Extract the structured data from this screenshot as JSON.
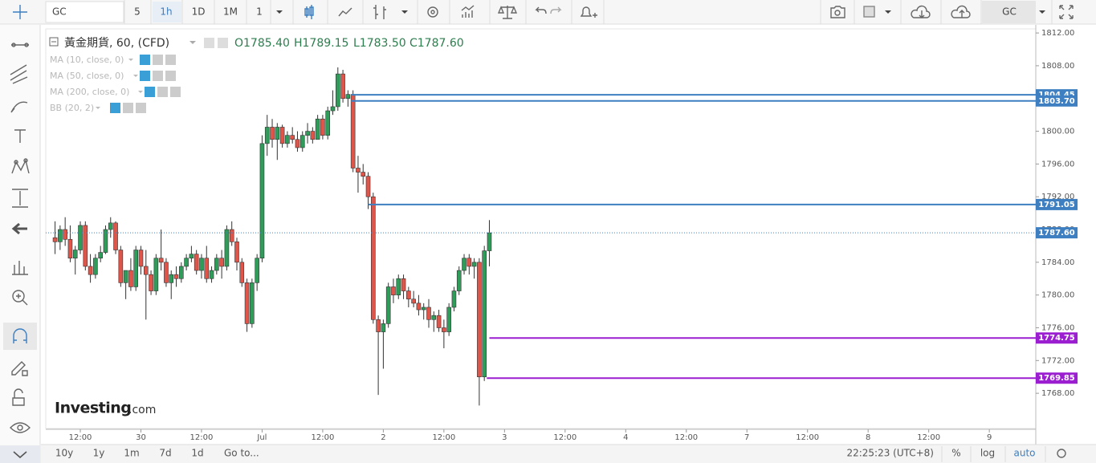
{
  "toolbar": {
    "symbol": "GC",
    "intervals": [
      "5",
      "1h",
      "1D",
      "1M"
    ],
    "chart_style": "1",
    "right_symbol": "GC"
  },
  "legend": {
    "title": "黃金期貨, 60, (CFD)",
    "ohlc": [
      "O1785.40",
      "H1789.15",
      "L1783.50",
      "C1787.60"
    ],
    "indicators": [
      "MA (10, close, 0)",
      "MA (50, close, 0)",
      "MA (200, close, 0)",
      "BB (20, 2)"
    ]
  },
  "chart_data": {
    "type": "candlestick",
    "x": [
      -5,
      -4,
      -3,
      -2,
      -1,
      0,
      1,
      2,
      3,
      4,
      5,
      6,
      7,
      8,
      9,
      10,
      11,
      12,
      13,
      14,
      15,
      16,
      17,
      18,
      19,
      20,
      21,
      22,
      23,
      24,
      25,
      26,
      27,
      28,
      29,
      30,
      31,
      32,
      33,
      34,
      35,
      36,
      37,
      38,
      39,
      40,
      41,
      42,
      43,
      44,
      45,
      46,
      47,
      48,
      49,
      50,
      51,
      52,
      53,
      54,
      55,
      56,
      57,
      58,
      59,
      60,
      61,
      62,
      63,
      64,
      65,
      66,
      67,
      68,
      69,
      70,
      71,
      72,
      73,
      74,
      75,
      76,
      77,
      78,
      79,
      80,
      81
    ],
    "ohlc": [
      [
        1787,
        1789,
        1785,
        1786.5
      ],
      [
        1786.5,
        1788.5,
        1785.5,
        1788
      ],
      [
        1788,
        1789.5,
        1786,
        1786.8
      ],
      [
        1786.8,
        1788.5,
        1784,
        1784.5
      ],
      [
        1784.5,
        1786,
        1782.5,
        1785.5
      ],
      [
        1785.5,
        1789,
        1785,
        1788.5
      ],
      [
        1788.5,
        1789,
        1783,
        1783.5
      ],
      [
        1783.5,
        1785,
        1781.5,
        1782.5
      ],
      [
        1782.5,
        1785,
        1782,
        1784.5
      ],
      [
        1784.5,
        1786,
        1784,
        1785.2
      ],
      [
        1785.2,
        1788.5,
        1785,
        1788
      ],
      [
        1788,
        1789.5,
        1787,
        1788.8
      ],
      [
        1788.8,
        1789,
        1785,
        1785.5
      ],
      [
        1785.5,
        1786,
        1781,
        1781.5
      ],
      [
        1781.5,
        1783,
        1779.5,
        1783
      ],
      [
        1783,
        1784.5,
        1780.5,
        1781
      ],
      [
        1781,
        1786,
        1780.5,
        1785.5
      ],
      [
        1785.5,
        1786,
        1782.5,
        1783.5
      ],
      [
        1783.5,
        1785.5,
        1777,
        1782.5
      ],
      [
        1782.5,
        1783,
        1780,
        1780.5
      ],
      [
        1780.5,
        1785,
        1780,
        1784.5
      ],
      [
        1784.5,
        1788,
        1783,
        1784
      ],
      [
        1784,
        1784.5,
        1781,
        1781.5
      ],
      [
        1781.5,
        1783,
        1779.5,
        1782.5
      ],
      [
        1782.5,
        1783.5,
        1781,
        1782
      ],
      [
        1782,
        1784,
        1781.5,
        1783.5
      ],
      [
        1783.5,
        1785,
        1783,
        1784.5
      ],
      [
        1784.5,
        1786,
        1784,
        1785
      ],
      [
        1785,
        1785.5,
        1782.5,
        1783
      ],
      [
        1783,
        1785,
        1782,
        1784.5
      ],
      [
        1784.5,
        1786,
        1781.5,
        1782
      ],
      [
        1782,
        1783.5,
        1781.5,
        1783
      ],
      [
        1783,
        1785,
        1782.5,
        1784.5
      ],
      [
        1784.5,
        1785.5,
        1782,
        1783.5
      ],
      [
        1783.5,
        1788.5,
        1783,
        1788
      ],
      [
        1788,
        1789,
        1786,
        1786.5
      ],
      [
        1786.5,
        1787,
        1783,
        1784
      ],
      [
        1784,
        1784.5,
        1781,
        1781.5
      ],
      [
        1781.5,
        1782,
        1775.5,
        1776.5
      ],
      [
        1776.5,
        1782,
        1776,
        1781.5
      ],
      [
        1781.5,
        1785,
        1780.5,
        1784.5
      ],
      [
        1784.5,
        1799.5,
        1784,
        1798.5
      ],
      [
        1798.5,
        1802,
        1797,
        1800.5
      ],
      [
        1800.5,
        1801.5,
        1798,
        1799
      ],
      [
        1799,
        1801,
        1796.5,
        1800.5
      ],
      [
        1800.5,
        1800.8,
        1798,
        1798.5
      ],
      [
        1798.5,
        1800,
        1798,
        1799.5
      ],
      [
        1799.5,
        1800.5,
        1798.5,
        1799
      ],
      [
        1799,
        1800,
        1797.5,
        1798
      ],
      [
        1798,
        1800,
        1797.5,
        1799.5
      ],
      [
        1799.5,
        1801,
        1798.5,
        1800
      ],
      [
        1800,
        1800.5,
        1798.5,
        1799
      ],
      [
        1799,
        1802,
        1799,
        1801.5
      ],
      [
        1801.5,
        1802,
        1799,
        1799.5
      ],
      [
        1799.5,
        1803,
        1799,
        1802.5
      ],
      [
        1802.5,
        1805,
        1802,
        1803
      ],
      [
        1803,
        1807.8,
        1802.5,
        1807
      ],
      [
        1807,
        1807.5,
        1803.5,
        1804
      ],
      [
        1804,
        1805,
        1803,
        1804.5
      ],
      [
        1804.5,
        1805,
        1795,
        1795.5
      ],
      [
        1795.5,
        1797,
        1792.5,
        1795
      ],
      [
        1795,
        1796,
        1793.5,
        1794.5
      ],
      [
        1794.5,
        1795,
        1790.5,
        1792
      ],
      [
        1792,
        1792.5,
        1776.5,
        1777
      ],
      [
        1777,
        1777.5,
        1767.8,
        1775.5
      ],
      [
        1775.5,
        1777,
        1771,
        1776.5
      ],
      [
        1776.5,
        1781.5,
        1776,
        1781
      ],
      [
        1781,
        1782,
        1779,
        1780
      ],
      [
        1780,
        1782.5,
        1779.5,
        1782
      ],
      [
        1782,
        1782.5,
        1779.5,
        1780.5
      ],
      [
        1780.5,
        1781,
        1778.5,
        1779.5
      ],
      [
        1779.5,
        1780.5,
        1778.5,
        1779
      ],
      [
        1779,
        1780,
        1777.5,
        1778.2
      ],
      [
        1778.2,
        1779,
        1777,
        1778.5
      ],
      [
        1778.5,
        1779.5,
        1776,
        1777
      ],
      [
        1777,
        1778,
        1775.5,
        1777.5
      ],
      [
        1777.5,
        1778.2,
        1775.5,
        1776
      ],
      [
        1776,
        1777,
        1773.5,
        1775.5
      ],
      [
        1775.5,
        1779,
        1775,
        1778.5
      ],
      [
        1778.5,
        1781,
        1778,
        1780.5
      ],
      [
        1780.5,
        1783.5,
        1780,
        1783
      ],
      [
        1783,
        1785,
        1782.5,
        1784.5
      ],
      [
        1784.5,
        1785,
        1782.5,
        1783.5
      ],
      [
        1783.5,
        1784.5,
        1782,
        1784
      ],
      [
        1784,
        1784.5,
        1766.5,
        1770
      ],
      [
        1770,
        1786,
        1769.5,
        1785.4
      ],
      [
        1785.4,
        1789.15,
        1783.5,
        1787.6
      ]
    ],
    "up_color": "#2f9c5a",
    "down_color": "#e0554a",
    "xlim": [
      -6.84,
      189.2
    ],
    "xticks": [
      {
        "value": 0,
        "label": "12:00"
      },
      {
        "value": 12,
        "label": "30"
      },
      {
        "value": 24,
        "label": "12:00"
      },
      {
        "value": 36,
        "label": "Jul"
      },
      {
        "value": 48,
        "label": "12:00"
      },
      {
        "value": 60,
        "label": "2"
      },
      {
        "value": 72,
        "label": "12:00"
      },
      {
        "value": 84,
        "label": "3"
      },
      {
        "value": 96,
        "label": "12:00"
      },
      {
        "value": 108,
        "label": "4"
      },
      {
        "value": 120,
        "label": "12:00"
      },
      {
        "value": 132,
        "label": "7"
      },
      {
        "value": 144,
        "label": "12:00"
      },
      {
        "value": 156,
        "label": "8"
      },
      {
        "value": 168,
        "label": "12:00"
      },
      {
        "value": 180,
        "label": "9"
      }
    ],
    "ylim": [
      1763.7,
      1812.5
    ],
    "yticks": [
      {
        "value": 1768,
        "label": "1768.00"
      },
      {
        "value": 1772,
        "label": "1772.00"
      },
      {
        "value": 1776,
        "label": "1776.00"
      },
      {
        "value": 1780,
        "label": "1780.00"
      },
      {
        "value": 1784,
        "label": "1784.00"
      },
      {
        "value": 1788,
        "label": "1788.00"
      },
      {
        "value": 1792,
        "label": "1792.00"
      },
      {
        "value": 1796,
        "label": "1796.00"
      },
      {
        "value": 1800,
        "label": "1800.00"
      },
      {
        "value": 1804,
        "label": "1804.00"
      },
      {
        "value": 1808,
        "label": "1808.00"
      },
      {
        "value": 1812,
        "label": "1812.00"
      }
    ],
    "levels": [
      {
        "value": 1804.45,
        "from": 53.6,
        "color": "#3d7fc1"
      },
      {
        "value": 1803.7,
        "label": "1803.70",
        "from": 53.6,
        "color": "#3d7fc1"
      },
      {
        "value": 1791.05,
        "from": 57,
        "color": "#3d7fc1"
      },
      {
        "value": 1774.75,
        "from": 81,
        "color": "#9b1fd1"
      },
      {
        "value": 1769.85,
        "from": 80.5,
        "color": "#9b1fd1"
      }
    ],
    "last_price": {
      "value": 1787.6,
      "label": "1787.60",
      "color": "#3d7fc1"
    }
  },
  "watermark": {
    "brand": "Investing",
    "suffix": ".com"
  },
  "footer": {
    "ranges": [
      "10y",
      "1y",
      "1m",
      "7d",
      "1d"
    ],
    "goto": "Go to...",
    "clock": "22:25:23 (UTC+8)",
    "options": [
      "%",
      "log",
      "auto"
    ]
  }
}
